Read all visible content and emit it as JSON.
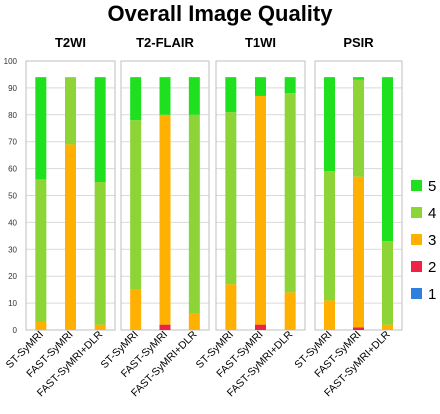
{
  "chart_data": {
    "type": "bar",
    "stacked": true,
    "title": "Overall Image Quality",
    "ylim": [
      0,
      100
    ],
    "yticks": [
      0,
      10,
      20,
      30,
      40,
      50,
      60,
      70,
      80,
      90,
      100
    ],
    "grid": true,
    "legend_position": "right",
    "categories": [
      "ST-SyMRI",
      "FAST-SyMRI",
      "FAST-SyMRI+DLR"
    ],
    "series": [
      {
        "name": "1",
        "color": "#2f7fe0"
      },
      {
        "name": "2",
        "color": "#ee2244"
      },
      {
        "name": "3",
        "color": "#ffb000"
      },
      {
        "name": "4",
        "color": "#8dd436"
      },
      {
        "name": "5",
        "color": "#1fe01f"
      }
    ],
    "panels": [
      {
        "title": "T2WI",
        "values": [
          [
            0,
            0,
            3,
            53,
            38
          ],
          [
            0,
            0,
            69,
            25,
            0
          ],
          [
            0,
            0,
            2,
            53,
            39
          ]
        ]
      },
      {
        "title": "T2-FLAIR",
        "values": [
          [
            0,
            0,
            15,
            63,
            16
          ],
          [
            0,
            2,
            78,
            0,
            14
          ],
          [
            0,
            0,
            6,
            74,
            14
          ]
        ]
      },
      {
        "title": "T1WI",
        "values": [
          [
            0,
            0,
            17,
            64,
            13
          ],
          [
            0,
            2,
            85,
            0,
            7
          ],
          [
            0,
            0,
            14,
            74,
            6
          ]
        ]
      },
      {
        "title": "PSIR",
        "values": [
          [
            0,
            0,
            11,
            48,
            35
          ],
          [
            0,
            1,
            56,
            36,
            1
          ],
          [
            0,
            0,
            2,
            31,
            61
          ]
        ]
      }
    ]
  }
}
